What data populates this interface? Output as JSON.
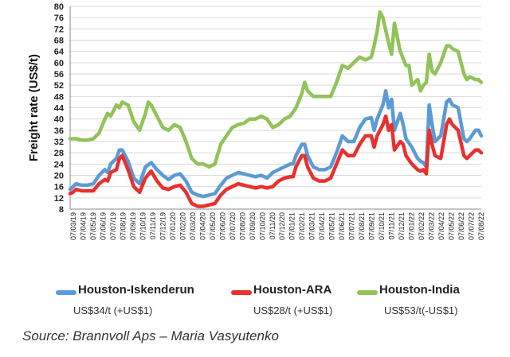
{
  "chart_data": {
    "type": "line",
    "xlabel": "",
    "ylabel": "Freight rate (US$/t)",
    "ylim": [
      8,
      80
    ],
    "yticks": [
      8,
      12,
      16,
      20,
      24,
      28,
      32,
      36,
      40,
      44,
      48,
      52,
      56,
      60,
      64,
      68,
      72,
      76,
      80
    ],
    "grid": "horizontal",
    "legend_placement": "bottom",
    "x_tick_labels": [
      "07/03/19",
      "07/04/19",
      "07/05/19",
      "07/06/19",
      "07/07/19",
      "07/08/19",
      "07/09/19",
      "07/10/19",
      "07/11/19",
      "07/12/19",
      "07/01/20",
      "07/02/20",
      "07/03/20",
      "07/04/20",
      "07/05/20",
      "07/06/20",
      "07/07/20",
      "07/08/20",
      "07/09/20",
      "07/10/20",
      "07/11/20",
      "07/12/20",
      "07/01/21",
      "07/02/21",
      "07/03/21",
      "07/04/21",
      "07/05/21",
      "07/06/21",
      "07/07/21",
      "07/08/21",
      "07/09/21",
      "07/10/21",
      "07/11/21",
      "07/12/21",
      "07/01/22",
      "07/02/22",
      "07/03/22",
      "07/04/22",
      "07/05/22",
      "07/06/22",
      "07/07/22",
      "07/08/22"
    ],
    "series": [
      {
        "name": "Houston-Iskenderun",
        "color": "#5b9bd5",
        "note": "US$34/t (+US$1)",
        "points": [
          [
            0,
            15
          ],
          [
            0.5,
            16
          ],
          [
            1,
            17
          ],
          [
            2,
            16.5
          ],
          [
            3,
            16.5
          ],
          [
            4,
            17
          ],
          [
            5,
            20
          ],
          [
            6,
            22
          ],
          [
            6.5,
            21
          ],
          [
            7,
            24
          ],
          [
            8,
            26
          ],
          [
            8.5,
            29
          ],
          [
            9,
            29
          ],
          [
            10,
            25
          ],
          [
            11,
            19
          ],
          [
            12,
            17
          ],
          [
            13,
            23
          ],
          [
            14,
            24.5
          ],
          [
            15,
            22
          ],
          [
            16,
            20
          ],
          [
            17,
            18.5
          ],
          [
            18,
            20
          ],
          [
            19,
            20.5
          ],
          [
            20,
            18
          ],
          [
            21,
            14
          ],
          [
            22,
            13
          ],
          [
            23,
            12.5
          ],
          [
            24,
            13
          ],
          [
            25,
            13.5
          ],
          [
            26,
            16.5
          ],
          [
            27,
            19
          ],
          [
            28,
            20
          ],
          [
            29,
            21
          ],
          [
            30,
            20.5
          ],
          [
            31,
            20
          ],
          [
            32,
            19.5
          ],
          [
            33,
            20
          ],
          [
            34,
            19
          ],
          [
            35,
            21
          ],
          [
            36,
            22
          ],
          [
            37,
            23
          ],
          [
            38,
            24
          ],
          [
            38.5,
            24
          ],
          [
            39,
            27
          ],
          [
            40,
            31
          ],
          [
            40.5,
            31
          ],
          [
            41,
            27
          ],
          [
            42,
            23
          ],
          [
            43,
            22
          ],
          [
            44,
            22
          ],
          [
            45,
            23
          ],
          [
            46,
            28
          ],
          [
            47,
            34
          ],
          [
            48,
            32
          ],
          [
            49,
            32
          ],
          [
            50,
            37
          ],
          [
            51,
            40
          ],
          [
            52,
            40.5
          ],
          [
            52.5,
            36
          ],
          [
            53,
            40
          ],
          [
            54,
            45
          ],
          [
            54.5,
            50
          ],
          [
            55,
            44
          ],
          [
            55.5,
            47
          ],
          [
            56,
            36
          ],
          [
            57,
            42
          ],
          [
            57.5,
            38
          ],
          [
            58,
            33
          ],
          [
            59,
            30
          ],
          [
            60,
            26
          ],
          [
            60.5,
            25
          ],
          [
            61,
            24.5
          ],
          [
            61.5,
            23
          ],
          [
            62,
            45
          ],
          [
            62.5,
            38
          ],
          [
            63,
            32
          ],
          [
            64,
            34
          ],
          [
            64.5,
            40
          ],
          [
            65,
            46
          ],
          [
            65.5,
            47
          ],
          [
            66,
            45
          ],
          [
            67,
            44
          ],
          [
            68,
            33
          ],
          [
            68.5,
            32
          ],
          [
            69,
            33
          ],
          [
            70,
            36
          ],
          [
            70.5,
            36
          ],
          [
            71,
            34
          ]
        ]
      },
      {
        "name": "Houston-ARA",
        "color": "#e8312f",
        "note": "US$28/t (+US$1)",
        "points": [
          [
            0,
            13.5
          ],
          [
            0.5,
            14
          ],
          [
            1,
            15
          ],
          [
            2,
            14.5
          ],
          [
            3,
            14.5
          ],
          [
            4,
            14.5
          ],
          [
            5,
            17
          ],
          [
            6,
            18.5
          ],
          [
            6.5,
            18
          ],
          [
            7,
            21
          ],
          [
            8,
            22
          ],
          [
            8.5,
            26
          ],
          [
            9,
            27
          ],
          [
            10,
            22
          ],
          [
            11,
            16
          ],
          [
            12,
            14
          ],
          [
            13,
            19
          ],
          [
            14,
            21.5
          ],
          [
            15,
            18
          ],
          [
            16,
            15.5
          ],
          [
            17,
            15
          ],
          [
            18,
            16
          ],
          [
            19,
            16.5
          ],
          [
            20,
            14
          ],
          [
            21,
            10
          ],
          [
            22,
            9
          ],
          [
            23,
            9
          ],
          [
            24,
            9.5
          ],
          [
            25,
            10
          ],
          [
            26,
            13
          ],
          [
            27,
            15
          ],
          [
            28,
            16
          ],
          [
            29,
            17
          ],
          [
            30,
            16.5
          ],
          [
            31,
            16
          ],
          [
            32,
            15.5
          ],
          [
            33,
            16
          ],
          [
            34,
            15.5
          ],
          [
            35,
            16
          ],
          [
            36,
            18
          ],
          [
            37,
            19
          ],
          [
            38,
            19.5
          ],
          [
            38.5,
            19.5
          ],
          [
            39,
            23
          ],
          [
            40,
            27
          ],
          [
            40.5,
            27
          ],
          [
            41,
            23
          ],
          [
            42,
            19
          ],
          [
            43,
            18
          ],
          [
            44,
            18
          ],
          [
            45,
            19
          ],
          [
            46,
            24
          ],
          [
            47,
            29
          ],
          [
            48,
            27
          ],
          [
            49,
            27
          ],
          [
            50,
            31
          ],
          [
            51,
            34
          ],
          [
            52,
            34
          ],
          [
            52.5,
            30
          ],
          [
            53,
            34
          ],
          [
            54,
            38
          ],
          [
            54.5,
            41
          ],
          [
            55,
            36
          ],
          [
            55.5,
            38
          ],
          [
            56,
            29
          ],
          [
            57,
            32
          ],
          [
            57.5,
            31
          ],
          [
            58,
            27
          ],
          [
            59,
            24
          ],
          [
            60,
            22
          ],
          [
            60.5,
            21.5
          ],
          [
            61,
            22
          ],
          [
            61.5,
            20.5
          ],
          [
            62,
            36
          ],
          [
            62.5,
            31
          ],
          [
            63,
            27
          ],
          [
            64,
            26
          ],
          [
            64.5,
            32
          ],
          [
            65,
            38
          ],
          [
            65.5,
            40
          ],
          [
            66,
            38
          ],
          [
            67,
            36
          ],
          [
            68,
            27
          ],
          [
            68.5,
            26
          ],
          [
            69,
            27
          ],
          [
            70,
            29
          ],
          [
            70.5,
            29
          ],
          [
            71,
            28
          ]
        ]
      },
      {
        "name": "Houston-India",
        "color": "#92c35a",
        "note": "US$53/t(-US$1)",
        "points": [
          [
            0,
            33
          ],
          [
            1,
            33
          ],
          [
            2,
            32.5
          ],
          [
            3,
            32.5
          ],
          [
            4,
            33
          ],
          [
            5,
            35
          ],
          [
            6,
            40
          ],
          [
            6.5,
            42
          ],
          [
            7,
            41
          ],
          [
            8,
            45
          ],
          [
            8.5,
            44
          ],
          [
            9,
            46
          ],
          [
            10,
            45
          ],
          [
            11,
            39
          ],
          [
            12,
            36
          ],
          [
            13,
            42
          ],
          [
            13.5,
            46
          ],
          [
            14,
            45
          ],
          [
            15,
            41
          ],
          [
            16,
            37
          ],
          [
            17,
            36
          ],
          [
            18,
            38
          ],
          [
            19,
            37
          ],
          [
            20,
            32
          ],
          [
            21,
            26
          ],
          [
            22,
            24
          ],
          [
            23,
            24
          ],
          [
            24,
            23
          ],
          [
            25,
            24
          ],
          [
            26,
            31
          ],
          [
            27,
            34
          ],
          [
            28,
            37
          ],
          [
            29,
            38
          ],
          [
            30,
            38.5
          ],
          [
            31,
            40
          ],
          [
            32,
            40
          ],
          [
            33,
            41
          ],
          [
            34,
            40
          ],
          [
            35,
            37
          ],
          [
            36,
            38
          ],
          [
            37,
            40
          ],
          [
            38,
            41
          ],
          [
            39,
            44
          ],
          [
            40,
            49
          ],
          [
            40.5,
            53
          ],
          [
            41,
            50
          ],
          [
            42,
            48
          ],
          [
            43,
            48
          ],
          [
            44,
            48
          ],
          [
            45,
            48
          ],
          [
            46,
            53
          ],
          [
            47,
            59
          ],
          [
            48,
            58
          ],
          [
            49,
            60
          ],
          [
            50,
            62
          ],
          [
            51,
            61
          ],
          [
            52,
            62
          ],
          [
            52.5,
            66
          ],
          [
            53,
            71
          ],
          [
            53.5,
            78
          ],
          [
            54,
            76
          ],
          [
            55,
            67
          ],
          [
            55.5,
            63
          ],
          [
            56,
            74
          ],
          [
            57,
            64
          ],
          [
            58,
            59
          ],
          [
            58.5,
            59
          ],
          [
            59,
            52
          ],
          [
            60,
            54
          ],
          [
            60.5,
            50
          ],
          [
            61,
            52
          ],
          [
            61.5,
            53
          ],
          [
            62,
            63
          ],
          [
            62.5,
            57
          ],
          [
            63,
            56
          ],
          [
            64,
            60
          ],
          [
            64.5,
            63
          ],
          [
            65,
            66
          ],
          [
            65.5,
            66
          ],
          [
            66,
            65
          ],
          [
            67,
            64
          ],
          [
            68,
            56
          ],
          [
            68.5,
            54
          ],
          [
            69,
            55
          ],
          [
            70,
            54
          ],
          [
            70.5,
            54
          ],
          [
            71,
            53
          ]
        ]
      }
    ]
  },
  "source_text": "Source: Brannvoll Aps – Maria Vasyutenko"
}
